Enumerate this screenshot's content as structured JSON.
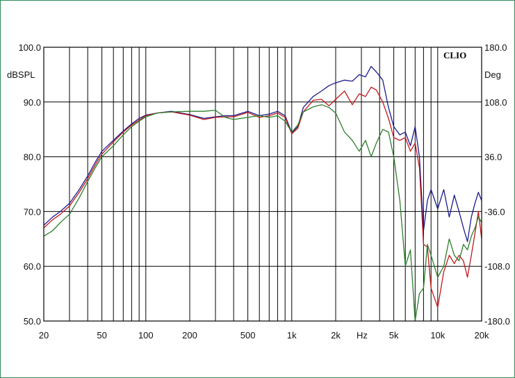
{
  "chart_data": {
    "type": "line",
    "brand": "CLIO",
    "left_unit": "dBSPL",
    "right_unit": "Deg",
    "x_unit": "Hz",
    "xscale": "log",
    "xlim": [
      20,
      20000
    ],
    "ylim": [
      50,
      100
    ],
    "y2lim": [
      -180,
      180
    ],
    "grid": true,
    "legend": "none",
    "x_ticks": [
      {
        "value": 20,
        "label": "20"
      },
      {
        "value": 50,
        "label": "50"
      },
      {
        "value": 100,
        "label": "100"
      },
      {
        "value": 200,
        "label": "200"
      },
      {
        "value": 500,
        "label": "500"
      },
      {
        "value": 1000,
        "label": "1k"
      },
      {
        "value": 2000,
        "label": "2k"
      },
      {
        "value": 5000,
        "label": "5k"
      },
      {
        "value": 10000,
        "label": "10k"
      },
      {
        "value": 20000,
        "label": "20k"
      }
    ],
    "y_ticks": [
      {
        "value": 50,
        "label": "50.0"
      },
      {
        "value": 60,
        "label": "60.0"
      },
      {
        "value": 70,
        "label": "70.0"
      },
      {
        "value": 80,
        "label": "80.0"
      },
      {
        "value": 90,
        "label": "90.0"
      },
      {
        "value": 100,
        "label": "100.0"
      }
    ],
    "y2_ticks": [
      {
        "value": -180,
        "label": "-180.0"
      },
      {
        "value": -108,
        "label": "-108.0"
      },
      {
        "value": -36,
        "label": "-36.0"
      },
      {
        "value": 36,
        "label": "36.0"
      },
      {
        "value": 108,
        "label": "108.0"
      },
      {
        "value": 180,
        "label": "180.0"
      }
    ],
    "series": [
      {
        "color": "#1a1a8c",
        "x": [
          20,
          23,
          26,
          30,
          35,
          40,
          45,
          50,
          60,
          70,
          80,
          90,
          100,
          120,
          150,
          200,
          250,
          300,
          350,
          400,
          500,
          600,
          700,
          800,
          900,
          1000,
          1100,
          1200,
          1400,
          1600,
          1800,
          2000,
          2300,
          2600,
          2900,
          3200,
          3500,
          3800,
          4200,
          4600,
          5000,
          5500,
          6000,
          6500,
          7000,
          7500,
          8000,
          8500,
          9000,
          10000,
          11000,
          12000,
          13000,
          14000,
          15000,
          16000,
          17000,
          18000,
          19000,
          20000
        ],
        "y": [
          67.5,
          69,
          70,
          71.5,
          74,
          76.5,
          79,
          81,
          83,
          84.7,
          86,
          87,
          87.6,
          88,
          88.3,
          87.7,
          87,
          87.3,
          87.5,
          87.5,
          88.3,
          87.5,
          87.8,
          88.3,
          87.5,
          84.4,
          85.5,
          89,
          91,
          92,
          93,
          93.5,
          94,
          93.8,
          95,
          94.6,
          96.5,
          95.5,
          94,
          89,
          85.5,
          84,
          84.5,
          82,
          85.5,
          80,
          66.5,
          72,
          74,
          70.5,
          74,
          69,
          73,
          70,
          67,
          64.5,
          69,
          71.5,
          73.5,
          72
        ]
      },
      {
        "color": "#c0181b",
        "x": [
          20,
          23,
          26,
          30,
          35,
          40,
          45,
          50,
          60,
          70,
          80,
          90,
          100,
          120,
          150,
          200,
          250,
          300,
          350,
          400,
          500,
          600,
          700,
          800,
          900,
          1000,
          1100,
          1200,
          1400,
          1600,
          1800,
          2000,
          2300,
          2600,
          2900,
          3200,
          3500,
          3800,
          4200,
          4600,
          5000,
          5500,
          6000,
          6500,
          7000,
          7500,
          8000,
          8500,
          9000,
          10000,
          11000,
          12000,
          13000,
          14000,
          15000,
          16000,
          17000,
          18000,
          19000,
          20000
        ],
        "y": [
          67,
          68.5,
          69.5,
          71,
          73.5,
          76,
          78.5,
          80.5,
          82.7,
          84.5,
          85.8,
          86.7,
          87.5,
          88,
          88.2,
          87.6,
          86.8,
          87.2,
          87.3,
          87.3,
          88.1,
          87.2,
          87.5,
          88,
          87.2,
          84.2,
          85.2,
          88.2,
          90.3,
          90.5,
          89.3,
          90.5,
          92,
          89.5,
          91.5,
          91,
          92.7,
          92.2,
          90,
          87,
          83.5,
          83,
          83.5,
          81,
          82.5,
          78,
          64,
          63.5,
          56,
          52.5,
          59,
          62,
          60.5,
          62,
          61,
          58,
          62,
          66,
          70,
          65
        ]
      },
      {
        "color": "#2c7d2c",
        "x": [
          20,
          23,
          26,
          30,
          35,
          40,
          45,
          50,
          60,
          70,
          80,
          90,
          100,
          120,
          150,
          200,
          250,
          300,
          350,
          400,
          500,
          600,
          700,
          800,
          900,
          1000,
          1100,
          1200,
          1400,
          1600,
          1800,
          2000,
          2300,
          2600,
          2900,
          3200,
          3500,
          3800,
          4200,
          4600,
          5000,
          5500,
          6000,
          6500,
          7000,
          7500,
          8000,
          8500,
          9000,
          10000,
          11000,
          12000,
          13000,
          14000,
          15000,
          16000,
          17000,
          18000,
          19000,
          20000
        ],
        "y": [
          65.5,
          66.5,
          68,
          69.5,
          72.5,
          75.5,
          78,
          80,
          82,
          84,
          85.5,
          86.5,
          87.3,
          88,
          88.2,
          88.3,
          88.3,
          88.5,
          87.2,
          86.8,
          87.2,
          87.5,
          87.2,
          87.5,
          86.5,
          84.5,
          85.8,
          88.2,
          89.1,
          89.5,
          89,
          88,
          84.5,
          83,
          81,
          83,
          80,
          82.5,
          85,
          84.5,
          80,
          72,
          60,
          63,
          48,
          55,
          56,
          64,
          62,
          58,
          60,
          65,
          62,
          61,
          64,
          63,
          65.5,
          67,
          69,
          68
        ]
      }
    ]
  }
}
